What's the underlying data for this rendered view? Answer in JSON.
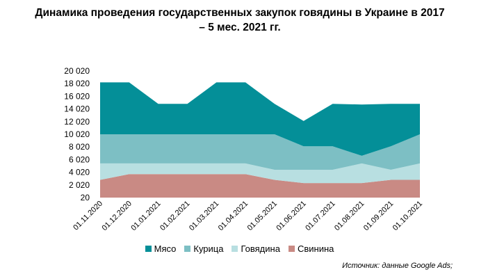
{
  "chart_data": {
    "type": "area",
    "stacked": true,
    "title_line1": "Динамика проведения государственных закупок говядины в Украине в 2017",
    "title_line2": "– 5 мес. 2021 гг.",
    "categories": [
      "01.11.2020",
      "01.12.2020",
      "01.01.2021",
      "01.02.2021",
      "01.03.2021",
      "01.04.2021",
      "01.05.2021",
      "01.06.2021",
      "01.07.2021",
      "01.08.2021",
      "01.09.2021",
      "01.10.2021"
    ],
    "yticks": [
      "20",
      "2 020",
      "4 020",
      "6 020",
      "8 020",
      "10 020",
      "12 020",
      "14 020",
      "16 020",
      "18 020",
      "20 020"
    ],
    "ylim": [
      20,
      20020
    ],
    "series": [
      {
        "name": "Свинина",
        "color": "#c98a84",
        "values": [
          2800,
          3700,
          3700,
          3700,
          3700,
          3700,
          2800,
          2300,
          2300,
          2300,
          2800,
          2800
        ]
      },
      {
        "name": "Говядина",
        "color": "#b8dfe1",
        "values": [
          2600,
          1700,
          1700,
          1700,
          1700,
          1700,
          1600,
          2100,
          2100,
          3100,
          1600,
          2600
        ]
      },
      {
        "name": "Курица",
        "color": "#7dbfc4",
        "values": [
          4600,
          4600,
          4600,
          4600,
          4600,
          4600,
          5600,
          3700,
          3700,
          1200,
          3700,
          4600
        ]
      },
      {
        "name": "Мясо",
        "color": "#048f98",
        "values": [
          8200,
          8200,
          4800,
          4800,
          8200,
          8200,
          4800,
          4000,
          6700,
          8100,
          6700,
          4800
        ]
      }
    ],
    "legend_position": "bottom",
    "grid": false
  },
  "source": "Источник: данные Google Ads;"
}
